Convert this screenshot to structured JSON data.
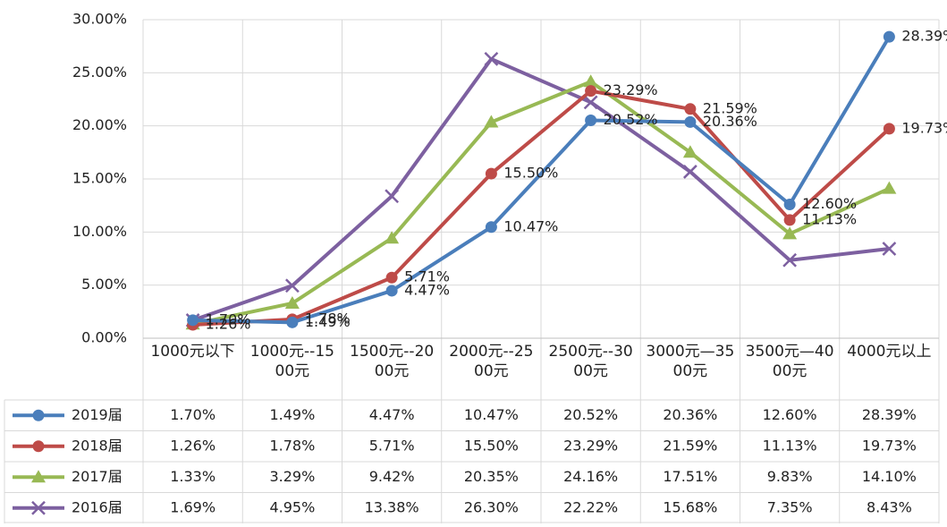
{
  "chart_data": {
    "type": "line",
    "categories": [
      "1000元以下",
      "1000元--1500元",
      "1500元--2000元",
      "2000元--2500元",
      "2500元--3000元",
      "3000元—3500元",
      "3500元—4000元",
      "4000元以上"
    ],
    "ylim": [
      0,
      30
    ],
    "yticks": [
      {
        "value": 0,
        "label": "0.00%"
      },
      {
        "value": 5,
        "label": "5.00%"
      },
      {
        "value": 10,
        "label": "10.00%"
      },
      {
        "value": 15,
        "label": "15.00%"
      },
      {
        "value": 20,
        "label": "20.00%"
      },
      {
        "value": 25,
        "label": "25.00%"
      },
      {
        "value": 30,
        "label": "30.00%"
      }
    ],
    "grid": true,
    "data_labels_on": [
      "2019届",
      "2018届"
    ],
    "series": [
      {
        "name": "2019届",
        "color": "#4a7ebb",
        "marker": "circle",
        "values": [
          1.7,
          1.49,
          4.47,
          10.47,
          20.52,
          20.36,
          12.6,
          28.39
        ],
        "value_labels": [
          "1.70%",
          "1.49%",
          "4.47%",
          "10.47%",
          "20.52%",
          "20.36%",
          "12.60%",
          "28.39%"
        ]
      },
      {
        "name": "2018届",
        "color": "#be4b48",
        "marker": "circle",
        "values": [
          1.26,
          1.78,
          5.71,
          15.5,
          23.29,
          21.59,
          11.13,
          19.73
        ],
        "value_labels": [
          "1.26%",
          "1.78%",
          "5.71%",
          "15.50%",
          "23.29%",
          "21.59%",
          "11.13%",
          "19.73%"
        ]
      },
      {
        "name": "2017届",
        "color": "#98b954",
        "marker": "triangle",
        "values": [
          1.33,
          3.29,
          9.42,
          20.35,
          24.16,
          17.51,
          9.83,
          14.1
        ],
        "value_labels": [
          "1.33%",
          "3.29%",
          "9.42%",
          "20.35%",
          "24.16%",
          "17.51%",
          "9.83%",
          "14.10%"
        ]
      },
      {
        "name": "2016届",
        "color": "#7d60a0",
        "marker": "x",
        "values": [
          1.69,
          4.95,
          13.38,
          26.3,
          22.22,
          15.68,
          7.35,
          8.43
        ],
        "value_labels": [
          "1.69%",
          "4.95%",
          "13.38%",
          "26.30%",
          "22.22%",
          "15.68%",
          "7.35%",
          "8.43%"
        ]
      }
    ]
  }
}
